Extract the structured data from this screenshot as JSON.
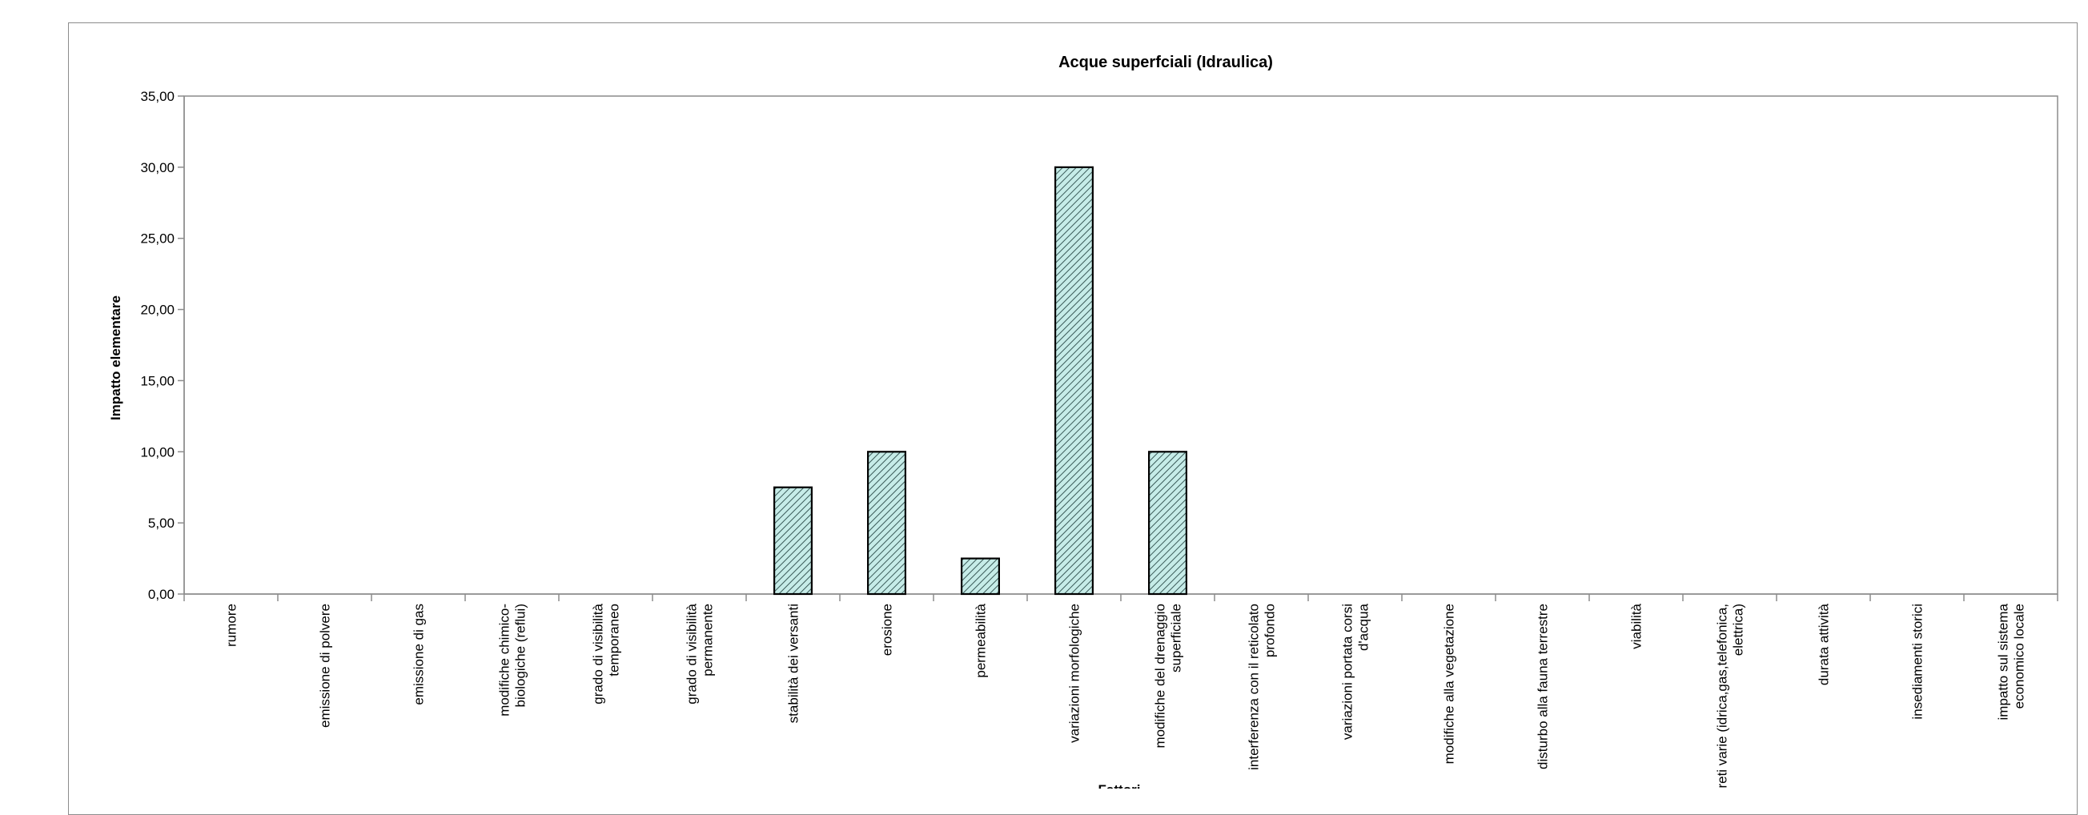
{
  "chart_data": {
    "type": "bar",
    "title": "Acque superfciali (Idraulica)",
    "xlabel": "Fattori",
    "ylabel": "Impatto elementare",
    "ylim": [
      0,
      35
    ],
    "y_ticks": [
      "0,00",
      "5,00",
      "10,00",
      "15,00",
      "20,00",
      "25,00",
      "30,00",
      "35,00"
    ],
    "grid": false,
    "legend": "none",
    "bar_fill": "#c6ece8",
    "bar_hatch": "#3a5a58",
    "bar_stroke": "#000000",
    "categories": [
      [
        "rumore"
      ],
      [
        "emissione di polvere"
      ],
      [
        "emissione di gas"
      ],
      [
        "modifiche chimico-",
        "biologiche (reflui)"
      ],
      [
        "grado di visibilità",
        "temporaneo"
      ],
      [
        "grado di visibilità",
        "permanente"
      ],
      [
        "stabilità dei versanti"
      ],
      [
        "erosione"
      ],
      [
        "permeabilità"
      ],
      [
        "variazioni morfologiche"
      ],
      [
        "modifiche del drenaggio",
        "superficiale"
      ],
      [
        "interferenza con il reticolato",
        "profondo"
      ],
      [
        "variazioni portata corsi",
        "d'acqua"
      ],
      [
        "modifiche alla vegetazione"
      ],
      [
        "disturbo alla fauna terrestre"
      ],
      [
        "viabilità"
      ],
      [
        "reti varie (idrica,gas,telefonica,",
        "elettrica)"
      ],
      [
        "durata attività"
      ],
      [
        "insediamenti storici"
      ],
      [
        "impatto sul sistema",
        "economico locale"
      ]
    ],
    "values": [
      0,
      0,
      0,
      0,
      0,
      0,
      7.5,
      10,
      2.5,
      30,
      10,
      0,
      0,
      0,
      0,
      0,
      0,
      0,
      0,
      0
    ]
  }
}
